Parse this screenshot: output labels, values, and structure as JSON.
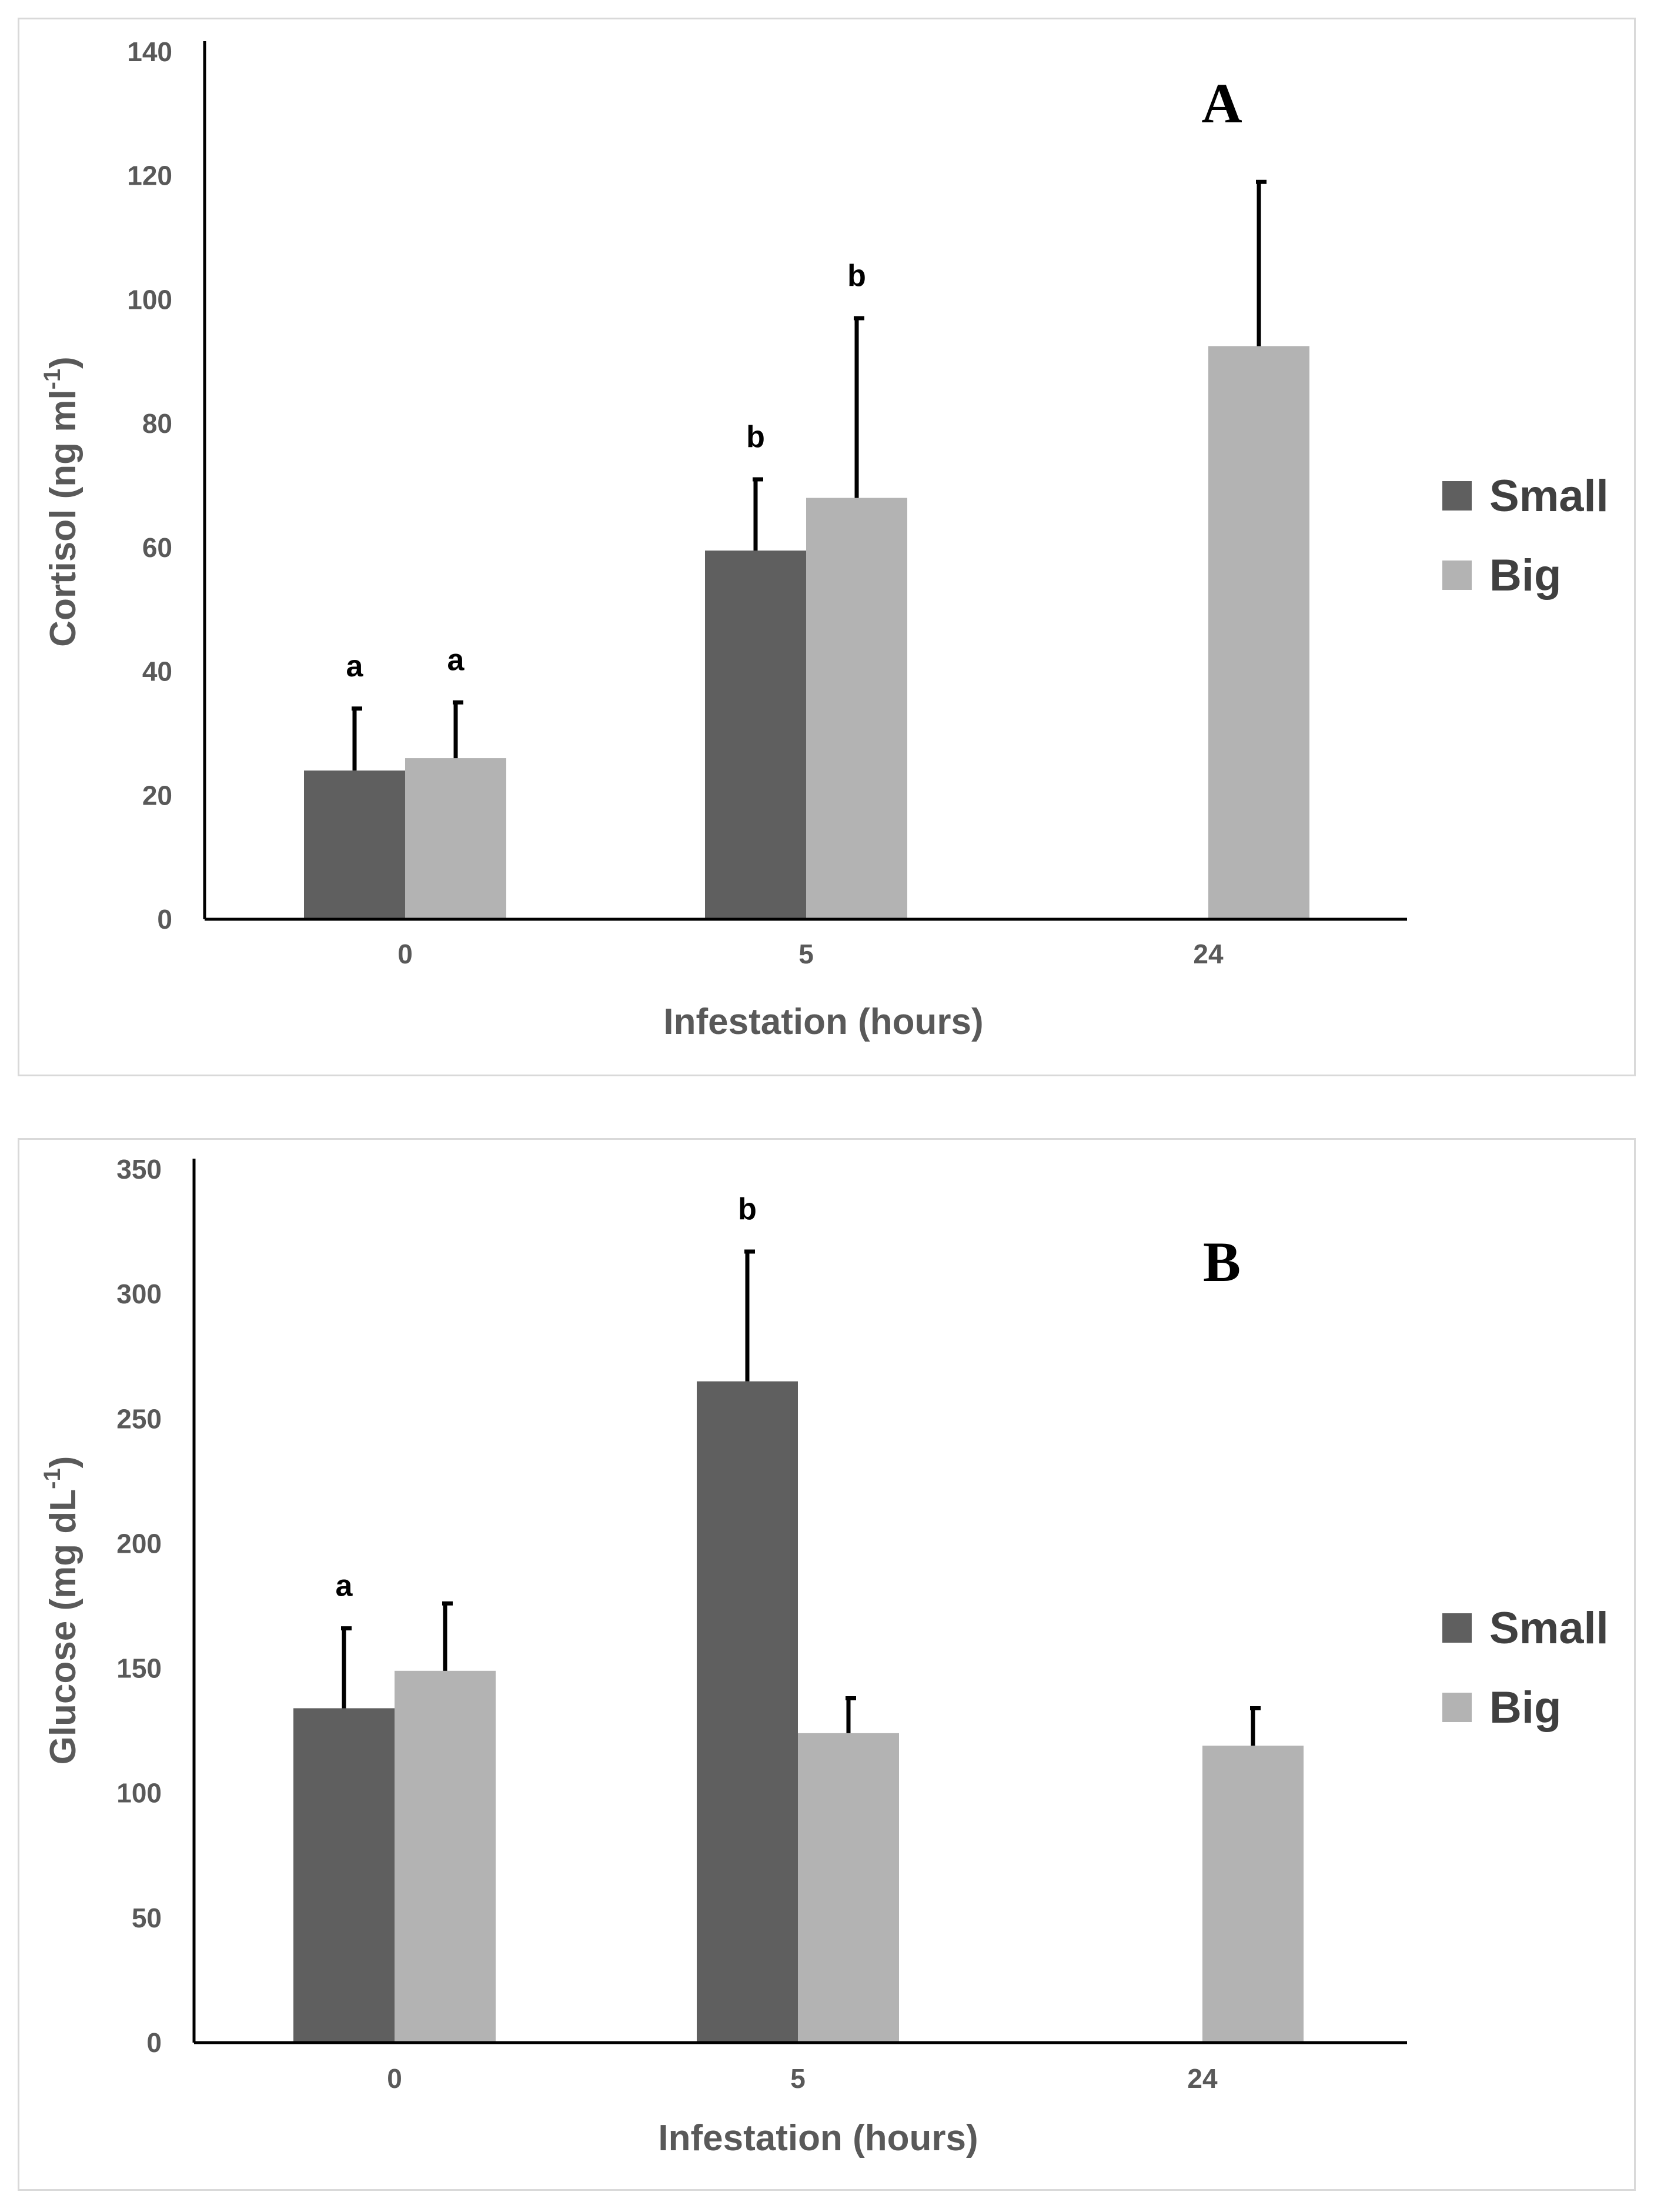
{
  "chart_data": [
    {
      "type": "bar",
      "panel_label": "A",
      "categories": [
        "0",
        "5",
        "24"
      ],
      "series": [
        {
          "name": "Small",
          "color": "#5f5f5f",
          "values": [
            24,
            59.5,
            null
          ],
          "errors": [
            10,
            11.5,
            null
          ],
          "sig": [
            "a",
            "b",
            null
          ]
        },
        {
          "name": "Big",
          "color": "#b3b3b3",
          "values": [
            26,
            68,
            92.5
          ],
          "errors": [
            9,
            29,
            26.5
          ],
          "sig": [
            "a",
            "b",
            null
          ]
        }
      ],
      "xlabel": "Infestation (hours)",
      "ylabel": "Cortisol (ng ml",
      "ylabel_sup": "-1",
      "ylabel_close": ")",
      "ylim": [
        0,
        140
      ],
      "yticks": [
        0,
        20,
        40,
        60,
        80,
        100,
        120,
        140
      ],
      "legend": "right"
    },
    {
      "type": "bar",
      "panel_label": "B",
      "categories": [
        "0",
        "5",
        "24"
      ],
      "series": [
        {
          "name": "Small",
          "color": "#5f5f5f",
          "values": [
            134,
            265,
            null
          ],
          "errors": [
            32,
            52,
            null
          ],
          "sig": [
            "a",
            "b",
            null
          ]
        },
        {
          "name": "Big",
          "color": "#b3b3b3",
          "values": [
            149,
            124,
            119
          ],
          "errors": [
            27,
            14,
            15
          ],
          "sig": [
            null,
            null,
            null
          ]
        }
      ],
      "xlabel": "Infestation (hours)",
      "ylabel": "Glucose (mg dL",
      "ylabel_sup": "-1",
      "ylabel_close": ")",
      "ylim": [
        0,
        350
      ],
      "yticks": [
        0,
        50,
        100,
        150,
        200,
        250,
        300,
        350
      ],
      "legend": "right"
    }
  ]
}
